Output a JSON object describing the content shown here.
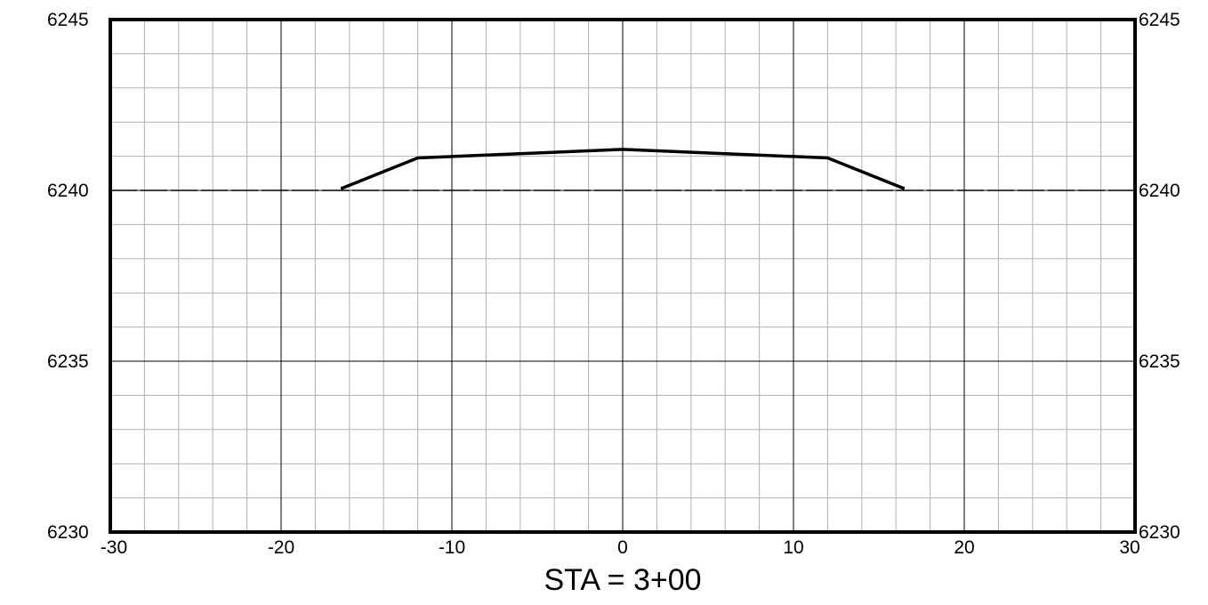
{
  "chart_data": {
    "type": "line",
    "title": "STA = 3+00",
    "xlabel": "",
    "ylabel": "",
    "xlim": [
      -30,
      30
    ],
    "ylim": [
      6230,
      6245
    ],
    "x_ticks": [
      -30,
      -20,
      -10,
      0,
      10,
      20,
      30
    ],
    "x_tick_labels": [
      "-30",
      "-20",
      "-10",
      "0",
      "10",
      "20",
      "30"
    ],
    "y_ticks": [
      6230,
      6235,
      6240,
      6245
    ],
    "y_tick_labels": [
      "6230",
      "6235",
      "6240",
      "6245"
    ],
    "grid": true,
    "minor_grid_step_x": 2,
    "minor_grid_step_y": 1,
    "series": [
      {
        "style": "dashed",
        "color": "#000000",
        "x": [
          -30,
          30
        ],
        "y": [
          6240,
          6240
        ]
      },
      {
        "style": "solid",
        "color": "#000000",
        "x": [
          -16.5,
          -12,
          0,
          12,
          16.5
        ],
        "y": [
          6240.05,
          6240.95,
          6241.2,
          6240.95,
          6240.05
        ]
      }
    ]
  }
}
